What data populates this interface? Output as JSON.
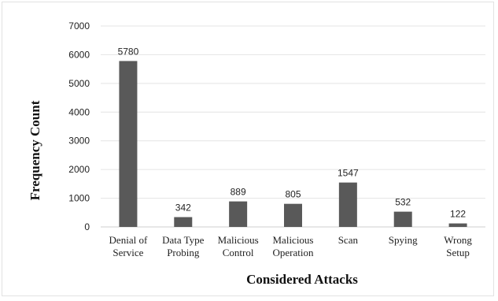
{
  "chart_data": {
    "type": "bar",
    "categories": [
      [
        "Denial of",
        "Service"
      ],
      [
        "Data Type",
        "Probing"
      ],
      [
        "Malicious",
        "Control"
      ],
      [
        "Malicious",
        "Operation"
      ],
      [
        "Scan"
      ],
      [
        "Spying"
      ],
      [
        "Wrong",
        "Setup"
      ]
    ],
    "values": [
      5780,
      342,
      889,
      805,
      1547,
      532,
      122
    ],
    "data_labels": [
      "5780",
      "342",
      "889",
      "805",
      "1547",
      "532",
      "122"
    ],
    "xlabel": "Considered Attacks",
    "ylabel": "Frequency Count",
    "ylim": [
      0,
      7000
    ],
    "yticks": [
      0,
      1000,
      2000,
      3000,
      4000,
      5000,
      6000,
      7000
    ],
    "grid": true,
    "legend": "none",
    "bar_color": "#595959"
  }
}
